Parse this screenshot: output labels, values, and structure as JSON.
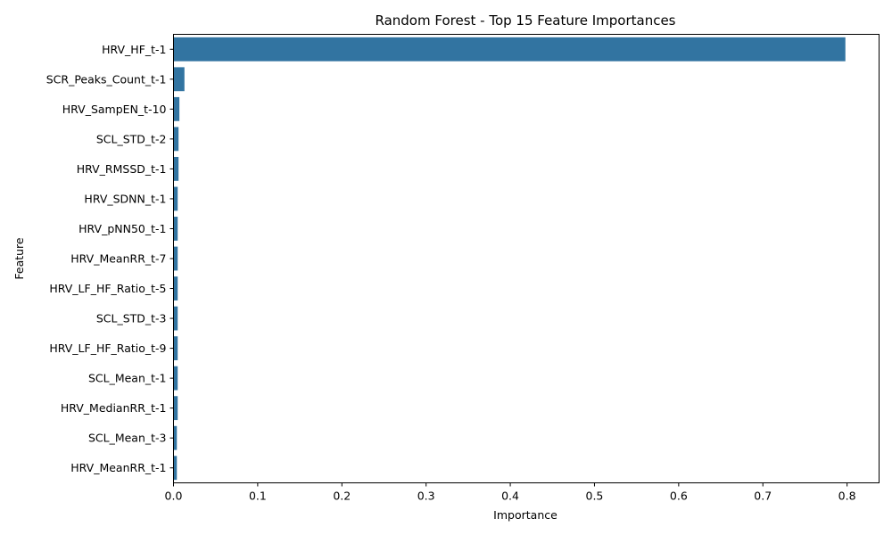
{
  "chart_data": {
    "type": "bar",
    "orientation": "horizontal",
    "title": "Random Forest - Top 15 Feature Importances",
    "xlabel": "Importance",
    "ylabel": "Feature",
    "xlim": [
      0,
      0.838
    ],
    "xticks": [
      0.0,
      0.1,
      0.2,
      0.3,
      0.4,
      0.5,
      0.6,
      0.7,
      0.8
    ],
    "xtick_labels": [
      "0.0",
      "0.1",
      "0.2",
      "0.3",
      "0.4",
      "0.5",
      "0.6",
      "0.7",
      "0.8"
    ],
    "grid": false,
    "legend": "none",
    "bar_color": "#3274a1",
    "categories": [
      "HRV_HF_t-1",
      "SCR_Peaks_Count_t-1",
      "HRV_SampEN_t-10",
      "SCL_STD_t-2",
      "HRV_RMSSD_t-1",
      "HRV_SDNN_t-1",
      "HRV_pNN50_t-1",
      "HRV_MeanRR_t-7",
      "HRV_LF_HF_Ratio_t-5",
      "SCL_STD_t-3",
      "HRV_LF_HF_Ratio_t-9",
      "SCL_Mean_t-1",
      "HRV_MedianRR_t-1",
      "SCL_Mean_t-3",
      "HRV_MeanRR_t-1"
    ],
    "values": [
      0.798,
      0.013,
      0.007,
      0.006,
      0.006,
      0.005,
      0.005,
      0.005,
      0.005,
      0.005,
      0.005,
      0.005,
      0.005,
      0.004,
      0.004
    ]
  }
}
